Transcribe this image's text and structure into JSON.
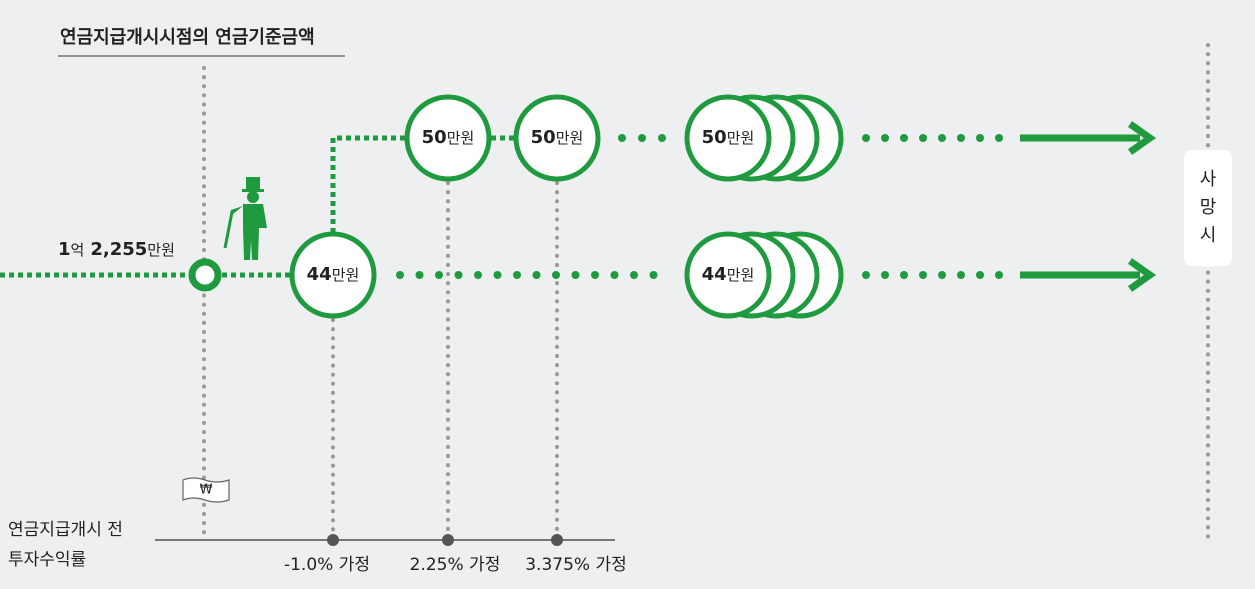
{
  "header": {
    "title": "연금지급개시시점의 연금기준금액"
  },
  "start_amount": {
    "parts": [
      "1",
      "억",
      "2,255",
      "만원"
    ]
  },
  "nodes": [
    {
      "number": "44",
      "unit": "만원"
    },
    {
      "number": "50",
      "unit": "만원"
    },
    {
      "number": "50",
      "unit": "만원"
    },
    {
      "number": "50",
      "unit": "만원"
    },
    {
      "number": "44",
      "unit": "만원"
    }
  ],
  "death_label": [
    "사",
    "망",
    "시"
  ],
  "bill_symbol": "₩",
  "axis": {
    "label": [
      "연금지급개시 전",
      "투자수익률"
    ],
    "points": [
      "-1.0% 가정",
      "2.25% 가정",
      "3.375% 가정"
    ]
  }
}
